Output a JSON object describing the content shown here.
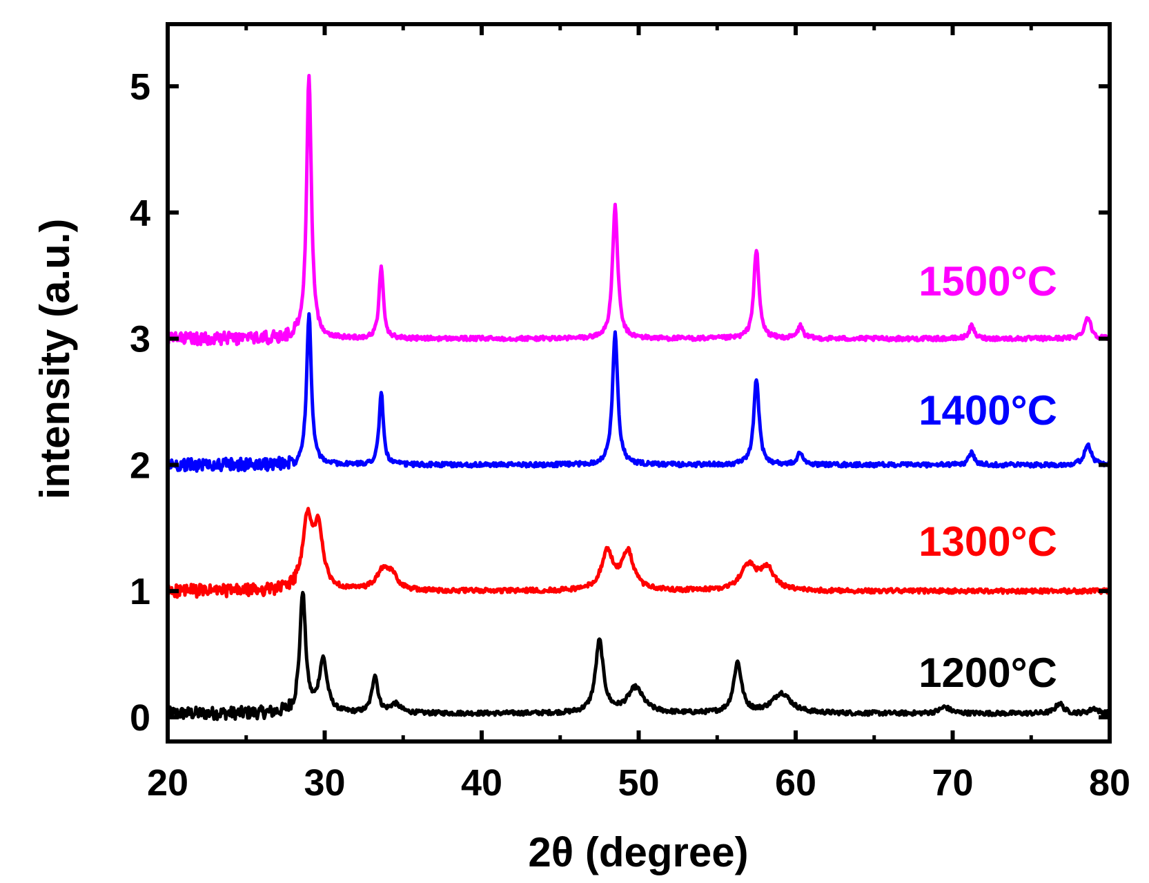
{
  "chart_data": {
    "type": "line",
    "title": "",
    "xlabel": "2θ (degree)",
    "ylabel": "intensity (a.u.)",
    "xlim": [
      20,
      80
    ],
    "ylim": [
      -0.15,
      5.5
    ],
    "xticks": [
      20,
      30,
      40,
      50,
      60,
      70,
      80
    ],
    "yticks": [
      0,
      1,
      2,
      3,
      4,
      5
    ],
    "xtick_labels": [
      "20",
      "30",
      "40",
      "50",
      "60",
      "70",
      "80"
    ],
    "ytick_labels": [
      "0",
      "1",
      "2",
      "3",
      "4",
      "5"
    ],
    "grid": false,
    "legend": "inline labels at right",
    "series": [
      {
        "name": "1200°C",
        "color": "#000000",
        "baseline": 0.03,
        "noise_end": 28.3,
        "noise_amp": 0.05,
        "peaks": [
          {
            "center": 28.6,
            "height": 0.95,
            "width": 0.22
          },
          {
            "center": 29.9,
            "height": 0.42,
            "width": 0.3
          },
          {
            "center": 33.2,
            "height": 0.3,
            "width": 0.22
          },
          {
            "center": 34.5,
            "height": 0.07,
            "width": 0.4
          },
          {
            "center": 47.5,
            "height": 0.57,
            "width": 0.3
          },
          {
            "center": 49.8,
            "height": 0.2,
            "width": 0.6
          },
          {
            "center": 56.3,
            "height": 0.4,
            "width": 0.3
          },
          {
            "center": 59.1,
            "height": 0.16,
            "width": 0.7
          },
          {
            "center": 69.5,
            "height": 0.05,
            "width": 0.4
          },
          {
            "center": 76.8,
            "height": 0.08,
            "width": 0.3
          },
          {
            "center": 79.0,
            "height": 0.04,
            "width": 0.3
          }
        ]
      },
      {
        "name": "1300°C",
        "color": "#ff0000",
        "baseline": 1.0,
        "noise_end": 28.3,
        "noise_amp": 0.05,
        "peaks": [
          {
            "center": 28.9,
            "height": 0.55,
            "width": 0.35
          },
          {
            "center": 29.6,
            "height": 0.47,
            "width": 0.35
          },
          {
            "center": 33.7,
            "height": 0.15,
            "width": 0.5
          },
          {
            "center": 34.3,
            "height": 0.1,
            "width": 0.4
          },
          {
            "center": 48.0,
            "height": 0.3,
            "width": 0.45
          },
          {
            "center": 49.3,
            "height": 0.3,
            "width": 0.45
          },
          {
            "center": 57.0,
            "height": 0.2,
            "width": 0.6
          },
          {
            "center": 58.2,
            "height": 0.17,
            "width": 0.5
          }
        ]
      },
      {
        "name": "1400°C",
        "color": "#0000ff",
        "baseline": 2.0,
        "noise_end": 28.3,
        "noise_amp": 0.05,
        "peaks": [
          {
            "center": 29.0,
            "height": 1.2,
            "width": 0.18
          },
          {
            "center": 33.6,
            "height": 0.58,
            "width": 0.16
          },
          {
            "center": 48.5,
            "height": 1.05,
            "width": 0.2
          },
          {
            "center": 57.5,
            "height": 0.68,
            "width": 0.2
          },
          {
            "center": 60.3,
            "height": 0.1,
            "width": 0.2
          },
          {
            "center": 71.2,
            "height": 0.1,
            "width": 0.2
          },
          {
            "center": 78.6,
            "height": 0.17,
            "width": 0.25
          }
        ]
      },
      {
        "name": "1500°C",
        "color": "#ff00ff",
        "baseline": 3.0,
        "noise_end": 28.3,
        "noise_amp": 0.05,
        "peaks": [
          {
            "center": 29.0,
            "height": 2.1,
            "width": 0.18
          },
          {
            "center": 33.6,
            "height": 0.58,
            "width": 0.16
          },
          {
            "center": 48.5,
            "height": 1.05,
            "width": 0.2
          },
          {
            "center": 57.5,
            "height": 0.7,
            "width": 0.2
          },
          {
            "center": 60.3,
            "height": 0.1,
            "width": 0.2
          },
          {
            "center": 71.2,
            "height": 0.1,
            "width": 0.2
          },
          {
            "center": 78.6,
            "height": 0.17,
            "width": 0.25
          }
        ]
      }
    ],
    "labels": [
      {
        "text": "1500°C",
        "color": "#ff00ff"
      },
      {
        "text": "1400°C",
        "color": "#0000ff"
      },
      {
        "text": "1300°C",
        "color": "#ff0000"
      },
      {
        "text": "1200°C",
        "color": "#000000"
      }
    ]
  }
}
